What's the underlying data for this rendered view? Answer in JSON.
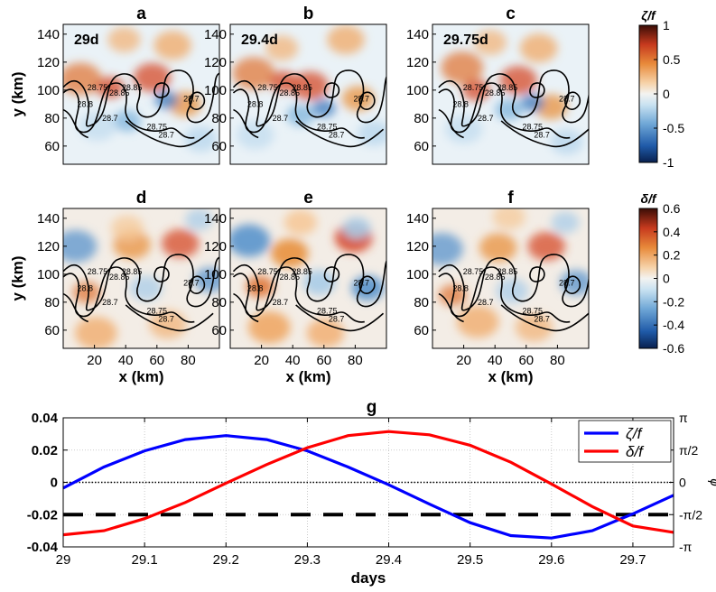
{
  "chart_data": [
    {
      "type": "heatmap",
      "description_panels": "Six map panels of normalized vorticity (top row) and divergence (bottom row) with density contours",
      "panels": [
        {
          "id": "a",
          "letter": "a",
          "time_label": "29d",
          "field": "vorticity"
        },
        {
          "id": "b",
          "letter": "b",
          "time_label": "29.4d",
          "field": "vorticity"
        },
        {
          "id": "c",
          "letter": "c",
          "time_label": "29.75d",
          "field": "vorticity"
        },
        {
          "id": "d",
          "letter": "d",
          "time_label": "",
          "field": "divergence"
        },
        {
          "id": "e",
          "letter": "e",
          "time_label": "",
          "field": "divergence"
        },
        {
          "id": "f",
          "letter": "f",
          "time_label": "",
          "field": "divergence"
        }
      ],
      "xlabel": "x (km)",
      "ylabel": "y (km)",
      "xlim": [
        0,
        100
      ],
      "ylim": [
        47,
        147
      ],
      "xticks": [
        20,
        40,
        60,
        80
      ],
      "yticks": [
        60,
        80,
        100,
        120,
        140
      ],
      "contour_labels": [
        "28.7",
        "28.75",
        "28.8",
        "28.85"
      ],
      "colorbars": [
        {
          "id": "vort",
          "label": "ζ/f",
          "range": [
            -1,
            1
          ],
          "ticks": [
            1,
            0.5,
            0,
            -0.5,
            -1
          ],
          "tick_labels": [
            "1",
            "0.5",
            "0",
            "-0.5",
            "-1"
          ]
        },
        {
          "id": "div",
          "label": "δ/f",
          "range": [
            -0.6,
            0.6
          ],
          "ticks": [
            0.6,
            0.4,
            0.2,
            0,
            -0.2,
            -0.4,
            -0.6
          ],
          "tick_labels": [
            "0.6",
            "0.4",
            "0.2",
            "0",
            "-0.2",
            "-0.4",
            "-0.6"
          ]
        }
      ]
    },
    {
      "type": "line",
      "panel_letter": "g",
      "xlabel": "days",
      "ylabel": "",
      "right_ylabel": "ϕ",
      "xlim": [
        29,
        29.75
      ],
      "ylim": [
        -0.04,
        0.04
      ],
      "xticks": [
        29,
        29.1,
        29.2,
        29.3,
        29.4,
        29.5,
        29.6,
        29.7
      ],
      "xtick_labels": [
        "29",
        "29.1",
        "29.2",
        "29.3",
        "29.4",
        "29.5",
        "29.6",
        "29.7"
      ],
      "yticks": [
        0.04,
        0.02,
        0,
        -0.02,
        -0.04
      ],
      "ytick_labels": [
        "0.04",
        "0.02",
        "0",
        "-0.02",
        "-0.04"
      ],
      "right_ticks": [
        0.04,
        0.02,
        0,
        -0.02,
        -0.04
      ],
      "right_tick_labels": [
        "π",
        "π/2",
        "0",
        "-π/2",
        "-π"
      ],
      "grid": true,
      "legend_position": "top-right",
      "series": [
        {
          "name": "ζ/f",
          "color": "#0000ff",
          "x": [
            29,
            29.05,
            29.1,
            29.15,
            29.2,
            29.25,
            29.3,
            29.35,
            29.4,
            29.45,
            29.5,
            29.55,
            29.6,
            29.65,
            29.7,
            29.75
          ],
          "y": [
            -0.0035,
            0.0095,
            0.0195,
            0.0265,
            0.029,
            0.0265,
            0.0195,
            0.0095,
            -0.0015,
            -0.0135,
            -0.025,
            -0.033,
            -0.0345,
            -0.03,
            -0.0195,
            -0.008
          ]
        },
        {
          "name": "δ/f",
          "color": "#ff0000",
          "x": [
            29,
            29.05,
            29.1,
            29.15,
            29.2,
            29.25,
            29.3,
            29.35,
            29.4,
            29.45,
            29.5,
            29.55,
            29.6,
            29.65,
            29.7,
            29.75
          ],
          "y": [
            -0.0325,
            -0.03,
            -0.0225,
            -0.0125,
            -0.0005,
            0.011,
            0.0215,
            0.029,
            0.0315,
            0.0295,
            0.023,
            0.0125,
            -0.001,
            -0.015,
            -0.027,
            -0.031
          ]
        }
      ],
      "reference_lines": [
        {
          "y": 0,
          "style": "dotted"
        },
        {
          "y": -0.02,
          "style": "dashed"
        }
      ]
    }
  ]
}
